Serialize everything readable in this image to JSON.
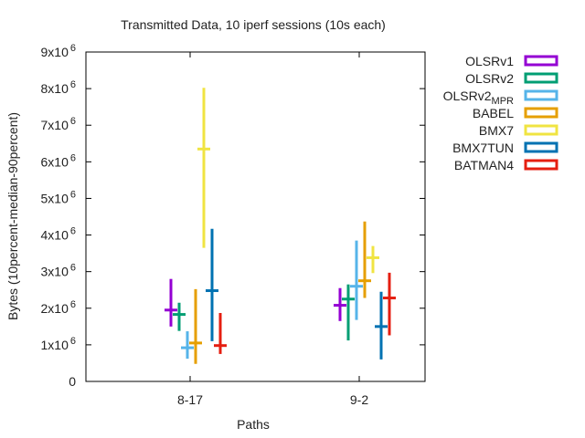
{
  "chart_data": {
    "type": "errorbar",
    "title": "Transmitted Data, 10 iperf sessions (10s each)",
    "xlabel": "Paths",
    "ylabel": "Bytes (10percent-median-90percent)",
    "categories": [
      "8-17",
      "9-2"
    ],
    "ylim": [
      0,
      9000000
    ],
    "yticks": [
      {
        "value": 0,
        "label": "0",
        "exp": ""
      },
      {
        "value": 1000000,
        "label": "1x10",
        "exp": "6"
      },
      {
        "value": 2000000,
        "label": "2x10",
        "exp": "6"
      },
      {
        "value": 3000000,
        "label": "3x10",
        "exp": "6"
      },
      {
        "value": 4000000,
        "label": "4x10",
        "exp": "6"
      },
      {
        "value": 5000000,
        "label": "5x10",
        "exp": "6"
      },
      {
        "value": 6000000,
        "label": "6x10",
        "exp": "6"
      },
      {
        "value": 7000000,
        "label": "7x10",
        "exp": "6"
      },
      {
        "value": 8000000,
        "label": "8x10",
        "exp": "6"
      },
      {
        "value": 9000000,
        "label": "9x10",
        "exp": "6"
      }
    ],
    "legend_position": "outside-right",
    "grid": false,
    "series": [
      {
        "name": "OLSRv1",
        "name_sub": "",
        "color": "#9400d3",
        "p10": [
          1500000,
          1650000
        ],
        "median": [
          1950000,
          2080000
        ],
        "p90": [
          2800000,
          2550000
        ]
      },
      {
        "name": "OLSRv2",
        "name_sub": "",
        "color": "#009e73",
        "p10": [
          1380000,
          1120000
        ],
        "median": [
          1830000,
          2250000
        ],
        "p90": [
          2150000,
          2650000
        ]
      },
      {
        "name": "OLSRv2",
        "name_sub": "MPR",
        "color": "#56b4e9",
        "p10": [
          620000,
          1680000
        ],
        "median": [
          920000,
          2600000
        ],
        "p90": [
          1370000,
          3850000
        ]
      },
      {
        "name": "BABEL",
        "name_sub": "",
        "color": "#e69f00",
        "p10": [
          480000,
          2280000
        ],
        "median": [
          1050000,
          2750000
        ],
        "p90": [
          2520000,
          4370000
        ]
      },
      {
        "name": "BMX7",
        "name_sub": "",
        "color": "#f0e442",
        "p10": [
          3650000,
          2960000
        ],
        "median": [
          6350000,
          3380000
        ],
        "p90": [
          8020000,
          3700000
        ]
      },
      {
        "name": "BMX7TUN",
        "name_sub": "",
        "color": "#0072b2",
        "p10": [
          1100000,
          600000
        ],
        "median": [
          2480000,
          1500000
        ],
        "p90": [
          4170000,
          2450000
        ]
      },
      {
        "name": "BATMAN4",
        "name_sub": "",
        "color": "#e51e10",
        "p10": [
          750000,
          1260000
        ],
        "median": [
          980000,
          2280000
        ],
        "p90": [
          1870000,
          2970000
        ]
      }
    ]
  }
}
